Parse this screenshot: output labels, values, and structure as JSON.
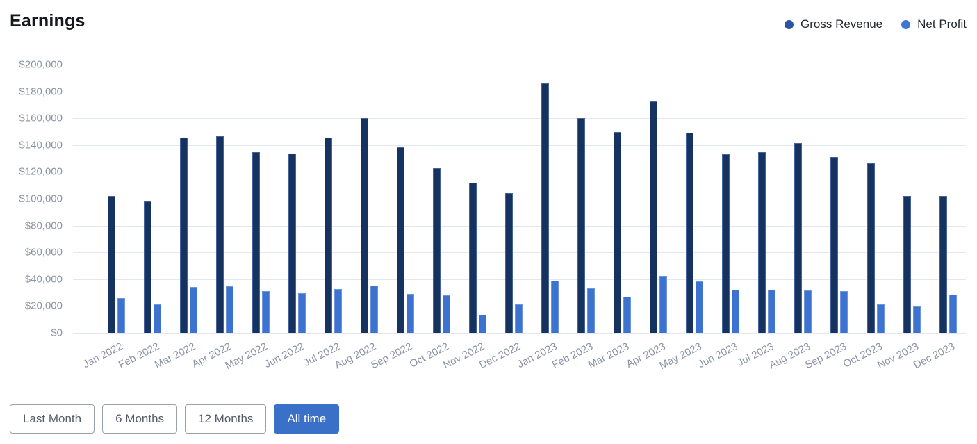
{
  "title": "Earnings",
  "legend": {
    "items": [
      {
        "label": "Gross Revenue",
        "color": "#2a55a3"
      },
      {
        "label": "Net Profit",
        "color": "#3e76d3"
      }
    ]
  },
  "chart_data": {
    "type": "bar",
    "title": "Earnings",
    "categories": [
      "Jan 2022",
      "Feb 2022",
      "Mar 2022",
      "Apr 2022",
      "May 2022",
      "Jun 2022",
      "Jul 2022",
      "Aug 2022",
      "Sep 2022",
      "Oct 2022",
      "Nov 2022",
      "Dec 2022",
      "Jan 2023",
      "Feb 2023",
      "Mar 2023",
      "Apr 2023",
      "May 2023",
      "Jun 2023",
      "Jul 2023",
      "Aug 2023",
      "Sep 2023",
      "Oct 2023",
      "Nov 2023",
      "Dec 2023"
    ],
    "series": [
      {
        "name": "Gross Revenue",
        "color": "#16325e",
        "border_color": "#44639c",
        "values": [
          102000,
          98500,
          145500,
          146500,
          134500,
          133500,
          145500,
          160000,
          138500,
          123000,
          112000,
          104000,
          186000,
          160000,
          149500,
          172500,
          149000,
          133000,
          134500,
          141500,
          131000,
          126500,
          102000,
          102000
        ]
      },
      {
        "name": "Net Profit",
        "color": "#3c73d0",
        "border_color": "#6e95db",
        "values": [
          26000,
          21000,
          34000,
          34500,
          31000,
          29500,
          32500,
          35500,
          29000,
          28000,
          13500,
          21000,
          39000,
          33000,
          27000,
          42500,
          38500,
          32000,
          32000,
          31500,
          31000,
          21000,
          19500,
          28500
        ]
      }
    ],
    "xlabel": "",
    "ylabel": "",
    "ylim": [
      0,
      200000
    ],
    "y_ticks": [
      0,
      20000,
      40000,
      60000,
      80000,
      100000,
      120000,
      140000,
      160000,
      180000,
      200000
    ],
    "y_tick_labels": [
      "$0",
      "$20,000",
      "$40,000",
      "$60,000",
      "$80,000",
      "$100,000",
      "$120,000",
      "$140,000",
      "$160,000",
      "$180,000",
      "$200,000"
    ],
    "grid": true,
    "legend_position": "top-right"
  },
  "controls": {
    "buttons": [
      {
        "label": "Last Month",
        "active": false
      },
      {
        "label": "6 Months",
        "active": false
      },
      {
        "label": "12 Months",
        "active": false
      },
      {
        "label": "All time",
        "active": true
      }
    ]
  },
  "colors": {
    "active_button_bg": "#3b70c9",
    "button_border": "#9aa1ac",
    "button_text": "#555c66",
    "axis_text": "#8c94a6",
    "gridline": "#e2e7f1",
    "title_text": "#15181d",
    "legend_text": "#23272e"
  }
}
